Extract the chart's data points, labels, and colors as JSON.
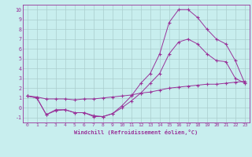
{
  "title": "",
  "xlabel": "Windchill (Refroidissement éolien,°C)",
  "bg_color": "#c8eeee",
  "grid_color": "#aacece",
  "line_color": "#993399",
  "xlim": [
    -0.5,
    23.5
  ],
  "ylim": [
    -1.5,
    10.5
  ],
  "xticks": [
    0,
    1,
    2,
    3,
    4,
    5,
    6,
    7,
    8,
    9,
    10,
    11,
    12,
    13,
    14,
    15,
    16,
    17,
    18,
    19,
    20,
    21,
    22,
    23
  ],
  "yticks": [
    -1,
    0,
    1,
    2,
    3,
    4,
    5,
    6,
    7,
    8,
    9,
    10
  ],
  "line1_x": [
    0,
    1,
    2,
    3,
    4,
    5,
    6,
    7,
    8,
    9,
    10,
    11,
    12,
    13,
    14,
    15,
    16,
    17,
    18,
    19,
    20,
    21,
    22,
    23
  ],
  "line1_y": [
    1.2,
    1.1,
    0.9,
    0.9,
    0.9,
    0.8,
    0.9,
    0.9,
    1.0,
    1.1,
    1.2,
    1.3,
    1.5,
    1.6,
    1.8,
    2.0,
    2.1,
    2.2,
    2.3,
    2.4,
    2.4,
    2.5,
    2.6,
    2.7
  ],
  "line2_x": [
    0,
    1,
    2,
    3,
    4,
    5,
    6,
    7,
    8,
    9,
    10,
    11,
    12,
    13,
    14,
    15,
    16,
    17,
    18,
    19,
    20,
    21,
    22,
    23
  ],
  "line2_y": [
    1.2,
    1.0,
    -0.7,
    -0.2,
    -0.2,
    -0.5,
    -0.5,
    -0.8,
    -0.9,
    -0.6,
    0.0,
    0.7,
    1.5,
    2.5,
    3.5,
    5.5,
    6.7,
    7.0,
    6.5,
    5.5,
    4.8,
    4.7,
    3.0,
    2.5
  ],
  "line3_x": [
    0,
    1,
    2,
    3,
    4,
    5,
    6,
    7,
    8,
    9,
    10,
    11,
    12,
    13,
    14,
    15,
    16,
    17,
    18,
    19,
    20,
    21,
    22,
    23
  ],
  "line3_y": [
    1.2,
    1.0,
    -0.7,
    -0.3,
    -0.2,
    -0.5,
    -0.5,
    -0.9,
    -0.9,
    -0.6,
    0.2,
    1.2,
    2.5,
    3.5,
    5.5,
    8.7,
    10.0,
    10.0,
    9.2,
    8.0,
    7.0,
    6.5,
    4.8,
    2.5
  ]
}
